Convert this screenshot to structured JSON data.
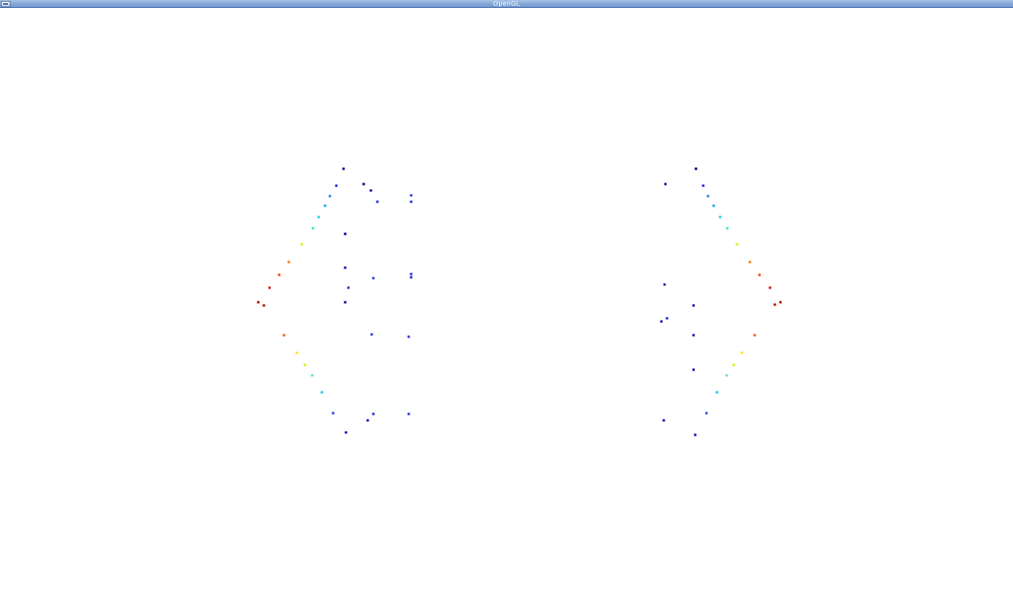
{
  "window": {
    "title": "OpenGL"
  },
  "icons": {
    "window_menu": "window-menu-icon"
  },
  "colors": {
    "titlebar": "#88a9d8",
    "background": "#ffffff"
  }
}
